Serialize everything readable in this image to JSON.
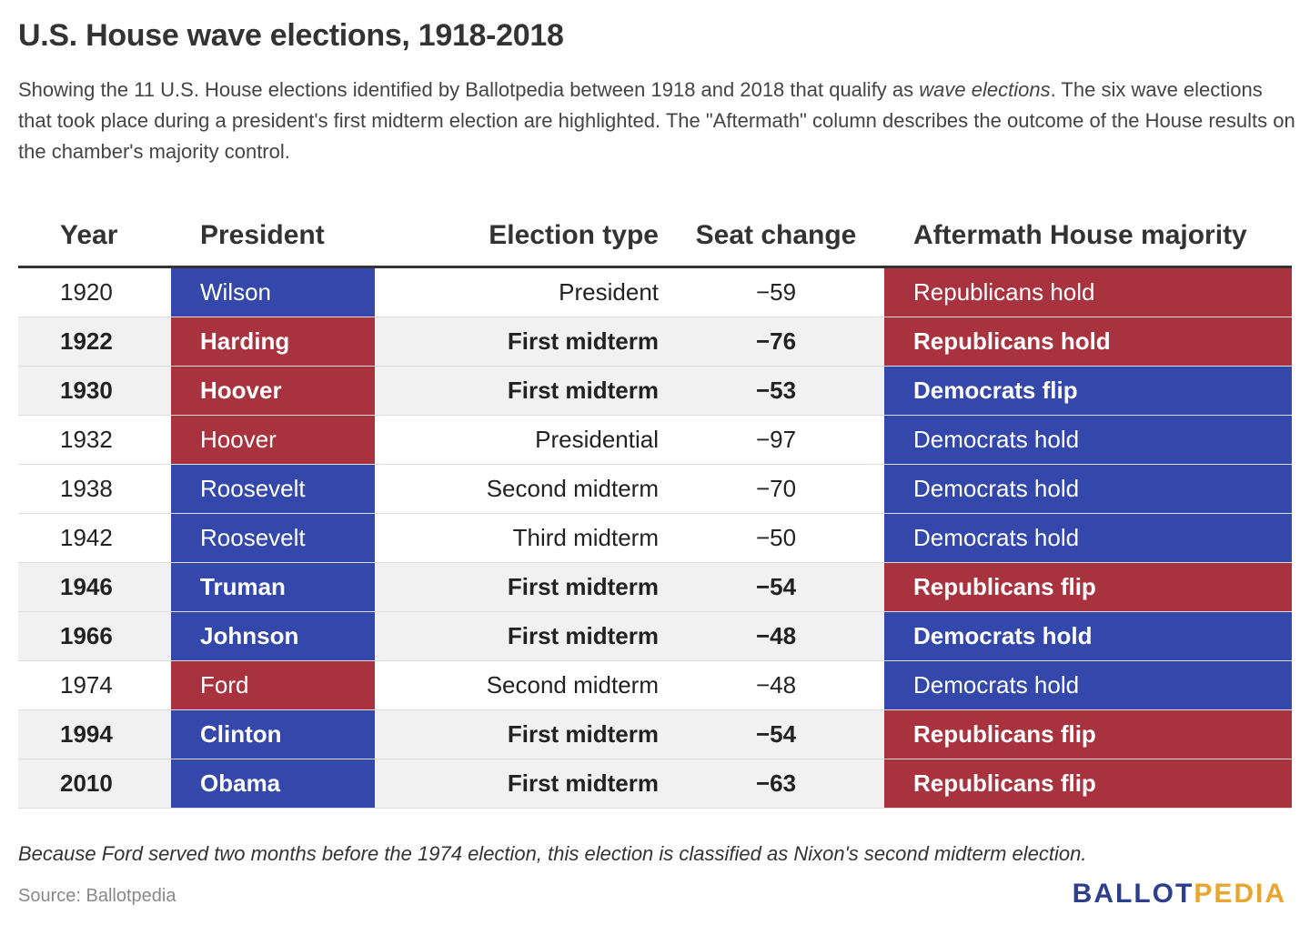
{
  "title": "U.S. House wave elections, 1918-2018",
  "subtitle": {
    "part1": "Showing the 11 U.S. House elections identified by Ballotpedia between 1918 and 2018 that qualify as ",
    "emphasis": "wave elections",
    "part2": ". The six wave elections that took place during a president's first midterm election are highlighted. The \"Aftermath\" column describes the outcome of the House results on the chamber's majority control."
  },
  "colors": {
    "democrat": "#3448ab",
    "republican": "#a8323e",
    "highlight_row": "#f1f1f1"
  },
  "chart_data": {
    "type": "table",
    "columns": [
      "Year",
      "President",
      "Election type",
      "Seat change",
      "Aftermath House majority"
    ],
    "rows": [
      {
        "year": "1920",
        "president": "Wilson",
        "president_party": "dem",
        "election_type": "President",
        "seat_change": "−59",
        "aftermath": "Republicans hold",
        "aftermath_party": "rep",
        "highlighted": false
      },
      {
        "year": "1922",
        "president": "Harding",
        "president_party": "rep",
        "election_type": "First midterm",
        "seat_change": "−76",
        "aftermath": "Republicans hold",
        "aftermath_party": "rep",
        "highlighted": true
      },
      {
        "year": "1930",
        "president": "Hoover",
        "president_party": "rep",
        "election_type": "First midterm",
        "seat_change": "−53",
        "aftermath": "Democrats flip",
        "aftermath_party": "dem",
        "highlighted": true
      },
      {
        "year": "1932",
        "president": "Hoover",
        "president_party": "rep",
        "election_type": "Presidential",
        "seat_change": "−97",
        "aftermath": "Democrats hold",
        "aftermath_party": "dem",
        "highlighted": false
      },
      {
        "year": "1938",
        "president": "Roosevelt",
        "president_party": "dem",
        "election_type": "Second midterm",
        "seat_change": "−70",
        "aftermath": "Democrats hold",
        "aftermath_party": "dem",
        "highlighted": false
      },
      {
        "year": "1942",
        "president": "Roosevelt",
        "president_party": "dem",
        "election_type": "Third midterm",
        "seat_change": "−50",
        "aftermath": "Democrats hold",
        "aftermath_party": "dem",
        "highlighted": false
      },
      {
        "year": "1946",
        "president": "Truman",
        "president_party": "dem",
        "election_type": "First midterm",
        "seat_change": "−54",
        "aftermath": "Republicans flip",
        "aftermath_party": "rep",
        "highlighted": true
      },
      {
        "year": "1966",
        "president": "Johnson",
        "president_party": "dem",
        "election_type": "First midterm",
        "seat_change": "−48",
        "aftermath": "Democrats hold",
        "aftermath_party": "dem",
        "highlighted": true
      },
      {
        "year": "1974",
        "president": "Ford",
        "president_party": "rep",
        "election_type": "Second midterm",
        "seat_change": "−48",
        "aftermath": "Democrats hold",
        "aftermath_party": "dem",
        "highlighted": false
      },
      {
        "year": "1994",
        "president": "Clinton",
        "president_party": "dem",
        "election_type": "First midterm",
        "seat_change": "−54",
        "aftermath": "Republicans flip",
        "aftermath_party": "rep",
        "highlighted": true
      },
      {
        "year": "2010",
        "president": "Obama",
        "president_party": "dem",
        "election_type": "First midterm",
        "seat_change": "−63",
        "aftermath": "Republicans flip",
        "aftermath_party": "rep",
        "highlighted": true
      }
    ]
  },
  "footnote": "Because Ford served two months before the 1974 election, this election is classified as Nixon's second midterm election.",
  "source": "Source: Ballotpedia",
  "logo": {
    "part1": "BALLOT",
    "part2": "PEDIA"
  }
}
